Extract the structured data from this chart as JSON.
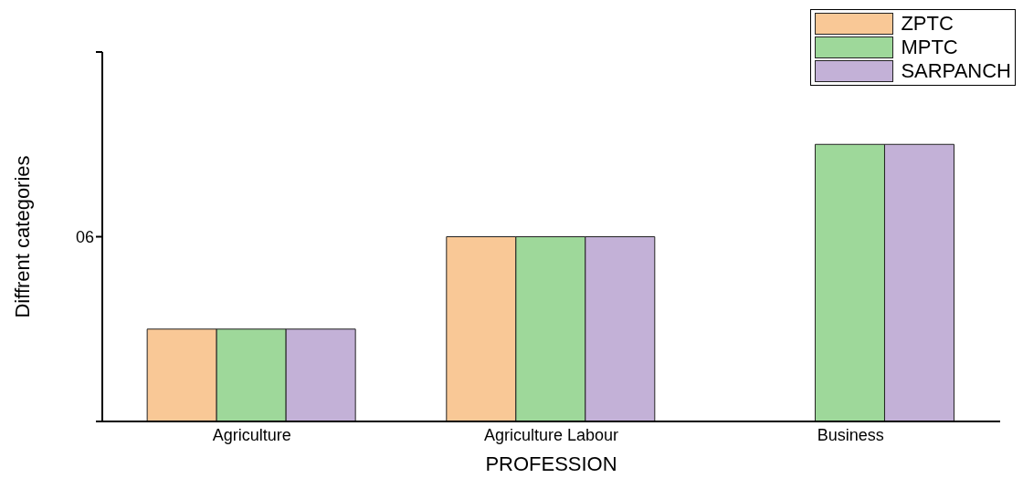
{
  "chart_data": {
    "type": "bar",
    "xlabel": "PROFESSION",
    "ylabel": "Diffrent categories",
    "categories": [
      "Agriculture",
      "Agriculture Labour",
      "Business"
    ],
    "series": [
      {
        "name": "ZPTC",
        "color": "#f9c896",
        "values": [
          3,
          6,
          null
        ]
      },
      {
        "name": "MPTC",
        "color": "#9ed89a",
        "values": [
          3,
          6,
          9
        ]
      },
      {
        "name": "SARPANCH",
        "color": "#c3b1d7",
        "values": [
          3,
          6,
          9
        ]
      }
    ],
    "ylim": [
      0,
      12
    ],
    "yticks": [
      {
        "value": 0,
        "label": null
      },
      {
        "value": 6,
        "label": "06"
      },
      {
        "value": 12,
        "label": null
      }
    ],
    "grid": false,
    "legend": "top right"
  }
}
